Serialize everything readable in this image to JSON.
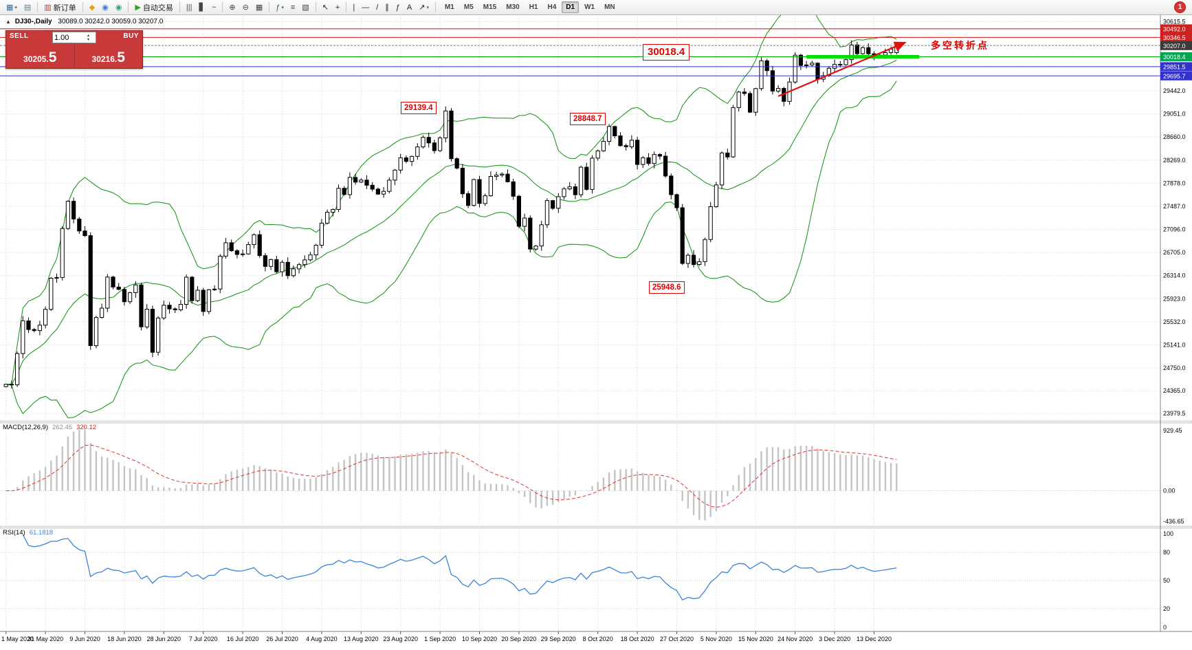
{
  "toolbar": {
    "groups": [
      {
        "name": "windows",
        "items": [
          {
            "name": "new-chart",
            "glyph": "▦",
            "color": "#3d6f9e",
            "caret": true
          },
          {
            "name": "profiles",
            "glyph": "▤",
            "color": "#6a7f8e"
          }
        ]
      },
      {
        "name": "trade",
        "items": [
          {
            "name": "new-order",
            "glyph": "▥",
            "color": "#b3392f",
            "label": "新订单"
          }
        ]
      },
      {
        "name": "services",
        "items": [
          {
            "name": "market",
            "glyph": "◆",
            "color": "#e2a60e"
          },
          {
            "name": "signals",
            "glyph": "◉",
            "color": "#3a7bd5"
          },
          {
            "name": "vps",
            "glyph": "◉",
            "color": "#34a06e"
          }
        ]
      },
      {
        "name": "autotrading",
        "items": [
          {
            "name": "auto-trading",
            "glyph": "▶",
            "color": "#2aa12a",
            "label": "自动交易"
          }
        ]
      },
      {
        "name": "chart-modes",
        "items": [
          {
            "name": "bars-mode",
            "glyph": "|||",
            "color": "#444"
          },
          {
            "name": "candles-mode",
            "glyph": "▋",
            "color": "#444"
          },
          {
            "name": "line-mode",
            "glyph": "~",
            "color": "#444"
          }
        ]
      },
      {
        "name": "zoom",
        "items": [
          {
            "name": "zoom-in",
            "glyph": "⊕",
            "color": "#444"
          },
          {
            "name": "zoom-out",
            "glyph": "⊖",
            "color": "#444"
          },
          {
            "name": "tile-windows",
            "glyph": "▦",
            "color": "#444"
          }
        ]
      },
      {
        "name": "indicators",
        "items": [
          {
            "name": "indicators",
            "glyph": "ƒ",
            "color": "#1c7a1c",
            "caret": true
          },
          {
            "name": "indicator-windows",
            "glyph": "≡",
            "color": "#444"
          },
          {
            "name": "templates",
            "glyph": "▧",
            "color": "#444"
          }
        ]
      },
      {
        "name": "cursor-tools",
        "items": [
          {
            "name": "cursor",
            "glyph": "↖",
            "color": "#222"
          },
          {
            "name": "crosshair",
            "glyph": "+",
            "color": "#222"
          }
        ]
      },
      {
        "name": "draw-tools",
        "items": [
          {
            "name": "vertical-line",
            "glyph": "|",
            "color": "#222"
          },
          {
            "name": "horizontal-line",
            "glyph": "―",
            "color": "#222"
          },
          {
            "name": "trendline",
            "glyph": "/",
            "color": "#222"
          },
          {
            "name": "channel",
            "glyph": "∥",
            "color": "#222"
          },
          {
            "name": "fibonacci",
            "glyph": "ƒ",
            "color": "#222"
          },
          {
            "name": "text-label",
            "glyph": "A",
            "color": "#222"
          },
          {
            "name": "arrows",
            "glyph": "↗",
            "color": "#222",
            "caret": true
          }
        ]
      }
    ],
    "timeframes": [
      {
        "label": "M1"
      },
      {
        "label": "M5"
      },
      {
        "label": "M15"
      },
      {
        "label": "M30"
      },
      {
        "label": "H1"
      },
      {
        "label": "H4"
      },
      {
        "label": "D1",
        "active": true
      },
      {
        "label": "W1"
      },
      {
        "label": "MN"
      }
    ],
    "notification_count": "1"
  },
  "chart": {
    "info": {
      "toggle_glyph": "▲",
      "symbol": "DJ30-,Daily",
      "ohlc": "30089.0 30242.0 30059.0 30207.0"
    },
    "trade_widget": {
      "sell_label": "SELL",
      "buy_label": "BUY",
      "lot": "1.00",
      "sell_price": "30205.5",
      "buy_price": "30216.5",
      "spin_up": "▴",
      "spin_down": "▾"
    },
    "axis_labels": [
      "30615.5",
      "30224.5",
      "29833.0",
      "29442.0",
      "29051.0",
      "28660.0",
      "28269.0",
      "27878.0",
      "27487.0",
      "27096.0",
      "26705.0",
      "26314.0",
      "25923.0",
      "25532.0",
      "25141.0",
      "24750.0",
      "24365.0",
      "23979.5"
    ],
    "price_tags": [
      {
        "text": "30492.0",
        "value": 30492.0,
        "bg": "#cc2222"
      },
      {
        "text": "30346.5",
        "value": 30346.5,
        "bg": "#cc2222"
      },
      {
        "text": "30207.0",
        "value": 30207.0,
        "bg": "#3a3a3a"
      },
      {
        "text": "30018.4",
        "value": 30018.4,
        "bg": "#00a651"
      },
      {
        "text": "29851.5",
        "value": 29851.5,
        "bg": "#3333cc"
      },
      {
        "text": "29695.7",
        "value": 29695.7,
        "bg": "#3333cc"
      }
    ],
    "level_lines": [
      {
        "value": 30492.0,
        "color": "#cc1111"
      },
      {
        "value": 30346.5,
        "color": "#cc1111"
      },
      {
        "value": 30207.0,
        "color": "#808080",
        "dash": "3,2"
      },
      {
        "value": 30018.4,
        "color": "#00a000"
      },
      {
        "value": 29851.5,
        "color": "#3030c0"
      },
      {
        "value": 29695.7,
        "color": "#3030c0"
      }
    ],
    "annotations": [
      {
        "text": "30018.4",
        "index": 113,
        "price": 30240,
        "style": "large-box"
      },
      {
        "text": "29139.4",
        "index": 70,
        "price": 29260,
        "style": "box"
      },
      {
        "text": "28848.7",
        "index": 100,
        "price": 29070,
        "style": "box"
      },
      {
        "text": "25948.6",
        "index": 114,
        "price": 26220,
        "style": "box"
      },
      {
        "text": "多空转折点",
        "index": 164,
        "price": 30330,
        "style": "plain"
      }
    ],
    "trendline": {
      "from_index": 137,
      "from_price": 29350,
      "to_index": 159.5,
      "to_price": 30260,
      "color": "#e01010"
    },
    "support_segment": {
      "from_index": 142,
      "to_index": 162,
      "price": 30018.4,
      "color": "#00dd00",
      "width": 5
    }
  },
  "macd_panel": {
    "label": "MACD(12,26,9)",
    "value": "262.45",
    "signal_value": "320.12",
    "axis": [
      "929.45",
      "0.00",
      "-436.65"
    ]
  },
  "rsi_panel": {
    "label": "RSI(14)",
    "value": "61.1818",
    "axis": [
      "100",
      "80",
      "50",
      "20",
      "0"
    ],
    "levels": [
      80,
      50,
      20
    ]
  },
  "chart_data": {
    "type": "candlestick",
    "symbol": "DJ30-",
    "timeframe": "Daily",
    "last_bar": {
      "open": 30089.0,
      "high": 30242.0,
      "low": 30059.0,
      "close": 30207.0
    },
    "y_range": [
      23900,
      30700
    ],
    "x_labels": [
      "1 May 2020",
      "31 May 2020",
      "9 Jun 2020",
      "18 Jun 2020",
      "28 Jun 2020",
      "7 Jul 2020",
      "16 Jul 2020",
      "26 Jul 2020",
      "4 Aug 2020",
      "13 Aug 2020",
      "23 Aug 2020",
      "1 Sep 2020",
      "10 Sep 2020",
      "20 Sep 2020",
      "29 Sep 2020",
      "8 Oct 2020",
      "18 Oct 2020",
      "27 Oct 2020",
      "5 Nov 2020",
      "15 Nov 2020",
      "24 Nov 2020",
      "3 Dec 2020",
      "13 Dec 2020"
    ],
    "closes": [
      24474,
      24465,
      24995,
      25548,
      25401,
      25383,
      25475,
      25743,
      26270,
      26282,
      27111,
      27572,
      27272,
      27069,
      26990,
      25128,
      25605,
      25763,
      26289,
      26120,
      26080,
      25871,
      26025,
      26156,
      25446,
      25746,
      25016,
      25596,
      25813,
      25750,
      25735,
      25827,
      26287,
      25890,
      26067,
      25706,
      26075,
      26086,
      26643,
      26870,
      26735,
      26672,
      26681,
      26840,
      27006,
      26652,
      26470,
      26585,
      26379,
      26540,
      26313,
      26428,
      26500,
      26580,
      26664,
      26828,
      27202,
      27387,
      27433,
      27791,
      27686,
      27977,
      27897,
      27931,
      27844,
      27778,
      27693,
      27740,
      27930,
      28100,
      28308,
      28248,
      28332,
      28492,
      28654,
      28560,
      28430,
      28645,
      29101,
      28293,
      28133,
      27700,
      27501,
      27940,
      27535,
      27666,
      27993,
      28016,
      28032,
      27902,
      27657,
      27148,
      27288,
      26763,
      26815,
      27174,
      27584,
      27453,
      27650,
      27782,
      27817,
      27683,
      28149,
      27773,
      28303,
      28426,
      28587,
      28838,
      28680,
      28514,
      28494,
      28606,
      28195,
      28308,
      28211,
      28364,
      28336,
      28000,
      27685,
      27463,
      26520,
      26659,
      26502,
      26550,
      26925,
      27480,
      27848,
      28390,
      28323,
      29158,
      29421,
      29397,
      29080,
      29480,
      29950,
      29783,
      29438,
      29483,
      29263,
      29591,
      30046,
      29872,
      29880,
      29910,
      29639,
      29700,
      29824,
      29890,
      29884,
      29970,
      30218,
      30070,
      30174,
      30069,
      29999,
      30046,
      30090,
      30150,
      30207
    ],
    "indicators": [
      {
        "name": "Bollinger Bands",
        "period": 20,
        "deviation": 2,
        "color": "#0e8f0e"
      },
      {
        "name": "MACD",
        "fast": 12,
        "slow": 26,
        "signal": 9,
        "value": 262.45,
        "signal_value": 320.12,
        "scale_max": 929.45,
        "scale_min": -436.65
      },
      {
        "name": "RSI",
        "period": 14,
        "value": 61.1818
      }
    ]
  }
}
